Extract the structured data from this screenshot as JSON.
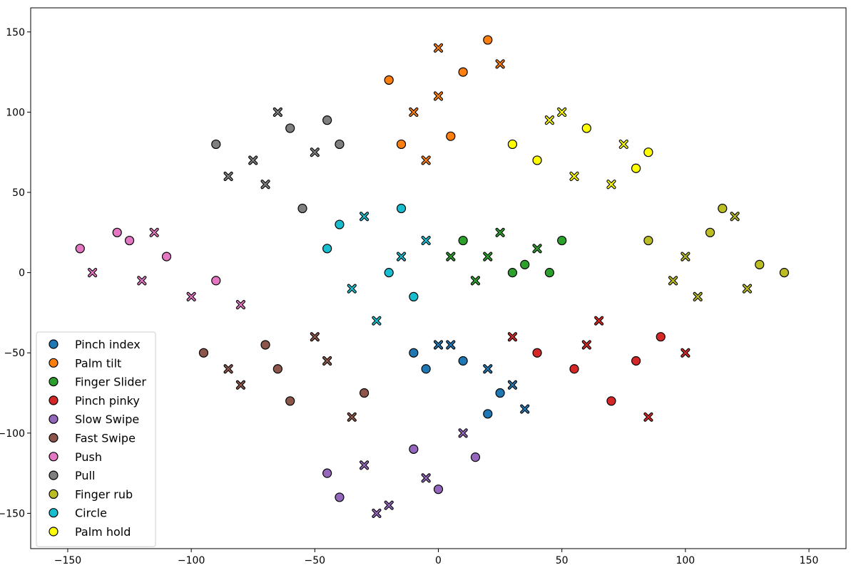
{
  "chart_data": {
    "type": "scatter",
    "title": "",
    "xlabel": "",
    "ylabel": "",
    "xlim": [
      -165,
      165
    ],
    "ylim": [
      -172,
      165
    ],
    "xticks": [
      -150,
      -100,
      -50,
      0,
      50,
      100,
      150
    ],
    "yticks": [
      -150,
      -100,
      -50,
      0,
      50,
      100,
      150
    ],
    "tick_labels_x": [
      "−150",
      "−100",
      "−50",
      "0",
      "50",
      "100",
      "150"
    ],
    "tick_labels_y": [
      "−150",
      "−100",
      "−50",
      "0",
      "50",
      "100",
      "150"
    ],
    "grid": false,
    "legend": "lower-left",
    "marker_note": "filled circles with black edge and x crosses share the class colour",
    "series": [
      {
        "name": "Pinch index",
        "color": "#1f77b4",
        "points": [
          [
            -10,
            -50
          ],
          [
            0,
            -45
          ],
          [
            10,
            -55
          ],
          [
            20,
            -60
          ],
          [
            25,
            -75
          ],
          [
            35,
            -85
          ],
          [
            20,
            -88
          ],
          [
            5,
            -45
          ],
          [
            -5,
            -60
          ],
          [
            30,
            -70
          ]
        ]
      },
      {
        "name": "Palm tilt",
        "color": "#ff7f0e",
        "points": [
          [
            -20,
            120
          ],
          [
            0,
            140
          ],
          [
            20,
            145
          ],
          [
            -10,
            100
          ],
          [
            5,
            85
          ],
          [
            -5,
            70
          ],
          [
            10,
            125
          ],
          [
            25,
            130
          ],
          [
            -15,
            80
          ],
          [
            0,
            110
          ]
        ]
      },
      {
        "name": "Finger Slider",
        "color": "#2ca02c",
        "points": [
          [
            10,
            20
          ],
          [
            20,
            10
          ],
          [
            30,
            0
          ],
          [
            40,
            15
          ],
          [
            50,
            20
          ],
          [
            25,
            25
          ],
          [
            35,
            5
          ],
          [
            15,
            -5
          ],
          [
            45,
            0
          ],
          [
            5,
            10
          ]
        ]
      },
      {
        "name": "Pinch pinky",
        "color": "#d62728",
        "points": [
          [
            40,
            -50
          ],
          [
            60,
            -45
          ],
          [
            80,
            -55
          ],
          [
            100,
            -50
          ],
          [
            70,
            -80
          ],
          [
            85,
            -90
          ],
          [
            55,
            -60
          ],
          [
            30,
            -40
          ],
          [
            90,
            -40
          ],
          [
            65,
            -30
          ]
        ]
      },
      {
        "name": "Slow Swipe",
        "color": "#9467bd",
        "points": [
          [
            -40,
            -140
          ],
          [
            -20,
            -145
          ],
          [
            0,
            -135
          ],
          [
            -30,
            -120
          ],
          [
            -10,
            -110
          ],
          [
            10,
            -100
          ],
          [
            -45,
            -125
          ],
          [
            -5,
            -128
          ],
          [
            15,
            -115
          ],
          [
            -25,
            -150
          ]
        ]
      },
      {
        "name": "Fast Swipe",
        "color": "#8c564b",
        "points": [
          [
            -95,
            -50
          ],
          [
            -80,
            -70
          ],
          [
            -60,
            -80
          ],
          [
            -45,
            -55
          ],
          [
            -70,
            -45
          ],
          [
            -50,
            -40
          ],
          [
            -30,
            -75
          ],
          [
            -85,
            -60
          ],
          [
            -65,
            -60
          ],
          [
            -35,
            -90
          ]
        ]
      },
      {
        "name": "Push",
        "color": "#e377c2",
        "points": [
          [
            -145,
            15
          ],
          [
            -140,
            0
          ],
          [
            -125,
            20
          ],
          [
            -120,
            -5
          ],
          [
            -110,
            10
          ],
          [
            -100,
            -15
          ],
          [
            -90,
            -5
          ],
          [
            -80,
            -20
          ],
          [
            -130,
            25
          ],
          [
            -115,
            25
          ]
        ]
      },
      {
        "name": "Pull",
        "color": "#7f7f7f",
        "points": [
          [
            -90,
            80
          ],
          [
            -75,
            70
          ],
          [
            -60,
            90
          ],
          [
            -50,
            75
          ],
          [
            -45,
            95
          ],
          [
            -70,
            55
          ],
          [
            -55,
            40
          ],
          [
            -85,
            60
          ],
          [
            -40,
            80
          ],
          [
            -65,
            100
          ]
        ]
      },
      {
        "name": "Finger rub",
        "color": "#bcbd22",
        "points": [
          [
            85,
            20
          ],
          [
            100,
            10
          ],
          [
            110,
            25
          ],
          [
            120,
            35
          ],
          [
            130,
            5
          ],
          [
            125,
            -10
          ],
          [
            140,
            0
          ],
          [
            95,
            -5
          ],
          [
            115,
            40
          ],
          [
            105,
            -15
          ]
        ]
      },
      {
        "name": "Circle",
        "color": "#17becf",
        "points": [
          [
            -45,
            15
          ],
          [
            -30,
            35
          ],
          [
            -15,
            40
          ],
          [
            -5,
            20
          ],
          [
            -20,
            0
          ],
          [
            -35,
            -10
          ],
          [
            -10,
            -15
          ],
          [
            -25,
            -30
          ],
          [
            -40,
            30
          ],
          [
            -15,
            10
          ]
        ]
      },
      {
        "name": "Palm hold",
        "color": "#ffff00",
        "points": [
          [
            30,
            80
          ],
          [
            45,
            95
          ],
          [
            60,
            90
          ],
          [
            75,
            80
          ],
          [
            80,
            65
          ],
          [
            55,
            60
          ],
          [
            40,
            70
          ],
          [
            70,
            55
          ],
          [
            85,
            75
          ],
          [
            50,
            100
          ]
        ]
      }
    ]
  }
}
